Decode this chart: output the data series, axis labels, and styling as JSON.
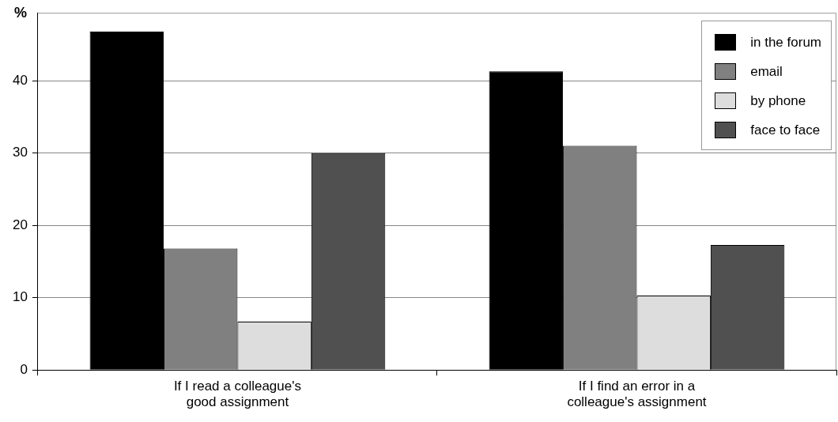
{
  "chart_data": {
    "type": "bar",
    "ylabel": "%",
    "categories": [
      "If I read a colleague's good assignment",
      "If I find an error in a colleague's assignment"
    ],
    "series": [
      {
        "name": "in the forum",
        "color": "#000000",
        "values": [
          46.8,
          41.3
        ]
      },
      {
        "name": "email",
        "color": "#808080",
        "values": [
          16.8,
          31.0
        ]
      },
      {
        "name": "by phone",
        "color": "#dddddd",
        "values": [
          6.7,
          10.3
        ]
      },
      {
        "name": "face to face",
        "color": "#505050",
        "values": [
          30.0,
          17.3
        ]
      }
    ],
    "ylim": [
      0,
      49.4
    ],
    "yticks": [
      0,
      10,
      20,
      30,
      40
    ],
    "grid": "y",
    "legend": "top right"
  }
}
